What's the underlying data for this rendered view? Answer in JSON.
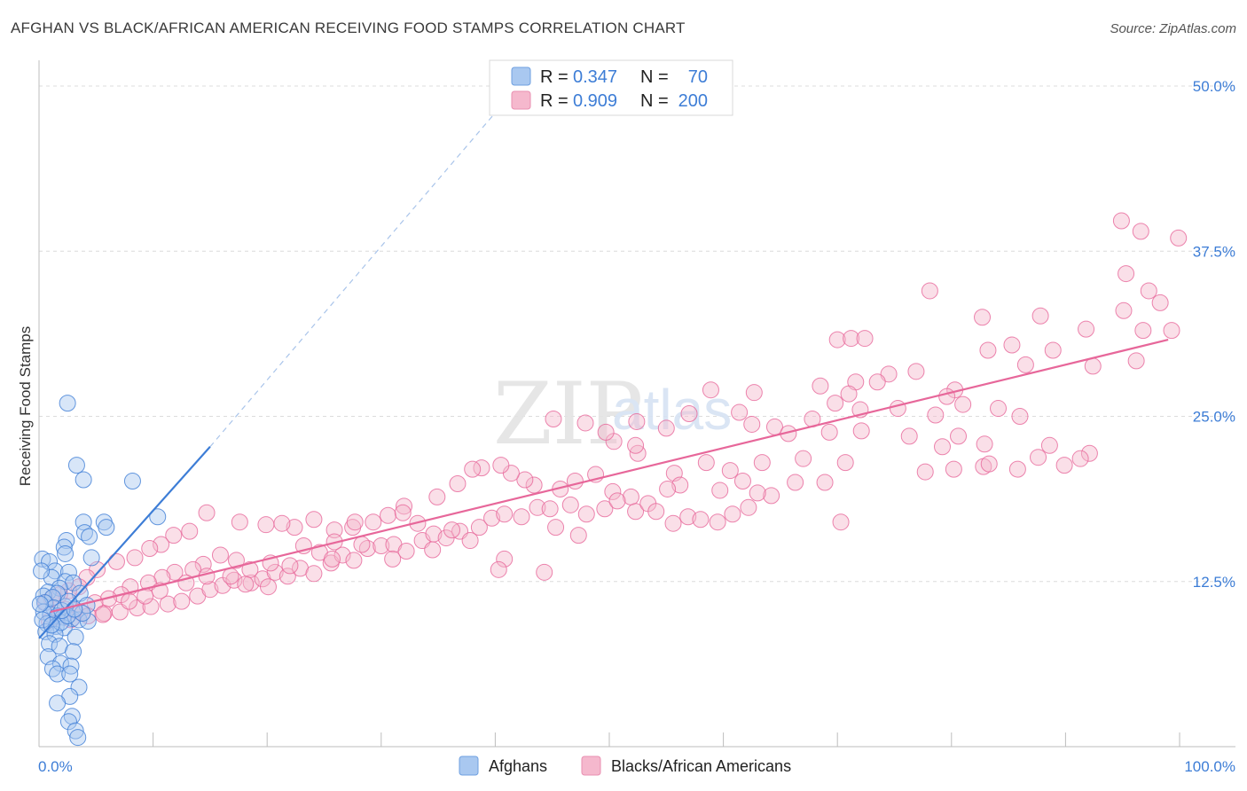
{
  "title": "AFGHAN VS BLACK/AFRICAN AMERICAN RECEIVING FOOD STAMPS CORRELATION CHART",
  "source": "Source: ZipAtlas.com",
  "colors": {
    "blue": "#3d7dd6",
    "blue_fill": "#a9c8f0",
    "pink": "#e7679a",
    "pink_fill": "#f5b8cd"
  },
  "legend": {
    "rows": [
      {
        "r_label": "R =",
        "r_value": "0.347",
        "n_label": "N =",
        "n_value": "70"
      },
      {
        "r_label": "R =",
        "r_value": "0.909",
        "n_label": "N =",
        "n_value": "200"
      }
    ]
  },
  "watermark": {
    "zip": "ZIP",
    "atlas": "atlas"
  },
  "chart_data": {
    "type": "scatter",
    "title": "AFGHAN VS BLACK/AFRICAN AMERICAN RECEIVING FOOD STAMPS CORRELATION CHART",
    "xlabel": "",
    "ylabel": "Receiving Food Stamps",
    "xlim": [
      0,
      100
    ],
    "ylim": [
      0,
      50
    ],
    "x_tick_labels": {
      "left": "0.0%",
      "right": "100.0%"
    },
    "y_ticks": [
      {
        "value": 12.5,
        "label": "12.5%"
      },
      {
        "value": 25.0,
        "label": "25.0%"
      },
      {
        "value": 37.5,
        "label": "37.5%"
      },
      {
        "value": 50.0,
        "label": "50.0%"
      }
    ],
    "series": [
      {
        "name": "Afghans",
        "color": "#3d7dd6",
        "R": 0.347,
        "N": 70,
        "trend": {
          "x0": 0,
          "y0": 8.2,
          "x1": 15,
          "y1": 22.7,
          "dashed_to_x": 42,
          "dashed_to_y": 50
        },
        "points": [
          [
            2.5,
            26
          ],
          [
            3.3,
            21.3
          ],
          [
            3.9,
            20.2
          ],
          [
            8.2,
            20.1
          ],
          [
            10.4,
            17.4
          ],
          [
            3.9,
            17
          ],
          [
            5.7,
            17
          ],
          [
            5.9,
            16.6
          ],
          [
            4.0,
            16.2
          ],
          [
            4.4,
            15.9
          ],
          [
            2.4,
            15.6
          ],
          [
            2.2,
            15.1
          ],
          [
            2.3,
            14.6
          ],
          [
            0.3,
            14.2
          ],
          [
            0.9,
            14.0
          ],
          [
            4.6,
            14.3
          ],
          [
            1.4,
            13.3
          ],
          [
            2.6,
            13.2
          ],
          [
            1.1,
            12.8
          ],
          [
            2.3,
            12.5
          ],
          [
            3.0,
            12.4
          ],
          [
            1.8,
            12.0
          ],
          [
            0.8,
            11.7
          ],
          [
            1.6,
            11.6
          ],
          [
            3.6,
            11.6
          ],
          [
            0.4,
            11.4
          ],
          [
            1.2,
            11.3
          ],
          [
            0.5,
            10.9
          ],
          [
            1.3,
            10.5
          ],
          [
            2.3,
            10.6
          ],
          [
            4.2,
            10.7
          ],
          [
            0.4,
            10.2
          ],
          [
            1.0,
            10.0
          ],
          [
            1.6,
            9.9
          ],
          [
            2.1,
            9.8
          ],
          [
            2.9,
            9.7
          ],
          [
            3.5,
            9.6
          ],
          [
            4.3,
            9.5
          ],
          [
            0.7,
            9.3
          ],
          [
            1.5,
            9.1
          ],
          [
            2.2,
            9.0
          ],
          [
            0.6,
            8.7
          ],
          [
            1.4,
            8.5
          ],
          [
            3.2,
            8.3
          ],
          [
            0.9,
            7.8
          ],
          [
            1.8,
            7.6
          ],
          [
            3.0,
            7.2
          ],
          [
            0.8,
            6.8
          ],
          [
            1.9,
            6.3
          ],
          [
            2.8,
            6.1
          ],
          [
            1.2,
            5.9
          ],
          [
            1.6,
            5.5
          ],
          [
            2.7,
            5.5
          ],
          [
            3.5,
            4.5
          ],
          [
            2.7,
            3.8
          ],
          [
            1.6,
            3.3
          ],
          [
            2.9,
            2.3
          ],
          [
            2.6,
            1.9
          ],
          [
            3.2,
            1.2
          ],
          [
            3.4,
            0.7
          ],
          [
            0.2,
            13.3
          ],
          [
            0.1,
            10.8
          ],
          [
            1.9,
            9.4
          ],
          [
            2.5,
            9.9
          ],
          [
            3.8,
            10.1
          ],
          [
            0.3,
            9.6
          ],
          [
            1.1,
            9.2
          ],
          [
            2.0,
            10.3
          ],
          [
            2.6,
            11.0
          ],
          [
            3.1,
            10.4
          ]
        ]
      },
      {
        "name": "Blacks/African Americans",
        "color": "#e7679a",
        "R": 0.909,
        "N": 200,
        "trend": {
          "x0": 1,
          "y0": 10.2,
          "x1": 99,
          "y1": 30.8
        },
        "points": [
          [
            94.9,
            39.8
          ],
          [
            96.6,
            39.0
          ],
          [
            99.9,
            38.5
          ],
          [
            95.3,
            35.8
          ],
          [
            97.3,
            34.5
          ],
          [
            98.3,
            33.6
          ],
          [
            78.1,
            34.5
          ],
          [
            82.7,
            32.5
          ],
          [
            87.8,
            32.6
          ],
          [
            95.1,
            33.0
          ],
          [
            91.8,
            31.6
          ],
          [
            96.8,
            31.5
          ],
          [
            99.3,
            31.5
          ],
          [
            70.0,
            30.8
          ],
          [
            71.2,
            30.9
          ],
          [
            72.4,
            30.9
          ],
          [
            88.9,
            30.0
          ],
          [
            85.3,
            30.4
          ],
          [
            83.2,
            30.0
          ],
          [
            86.5,
            28.9
          ],
          [
            92.4,
            28.8
          ],
          [
            96.2,
            29.2
          ],
          [
            74.5,
            28.2
          ],
          [
            73.5,
            27.6
          ],
          [
            76.9,
            28.4
          ],
          [
            71.6,
            27.6
          ],
          [
            68.5,
            27.3
          ],
          [
            71.0,
            26.7
          ],
          [
            80.3,
            27.0
          ],
          [
            79.6,
            26.5
          ],
          [
            58.9,
            27.0
          ],
          [
            62.7,
            26.8
          ],
          [
            81.0,
            25.9
          ],
          [
            84.1,
            25.6
          ],
          [
            86.0,
            25.0
          ],
          [
            75.3,
            25.6
          ],
          [
            78.6,
            25.1
          ],
          [
            69.8,
            26.0
          ],
          [
            72.0,
            25.5
          ],
          [
            61.4,
            25.3
          ],
          [
            57.0,
            25.2
          ],
          [
            52.4,
            24.6
          ],
          [
            55.0,
            24.1
          ],
          [
            62.5,
            24.4
          ],
          [
            64.5,
            24.2
          ],
          [
            67.8,
            24.8
          ],
          [
            65.7,
            23.7
          ],
          [
            69.3,
            23.8
          ],
          [
            72.1,
            23.9
          ],
          [
            76.3,
            23.5
          ],
          [
            80.6,
            23.5
          ],
          [
            79.2,
            22.7
          ],
          [
            82.9,
            22.9
          ],
          [
            88.6,
            22.8
          ],
          [
            87.6,
            21.9
          ],
          [
            92.1,
            22.2
          ],
          [
            89.9,
            21.3
          ],
          [
            85.8,
            21.0
          ],
          [
            82.8,
            21.2
          ],
          [
            80.2,
            21.0
          ],
          [
            77.7,
            20.8
          ],
          [
            83.3,
            21.4
          ],
          [
            91.3,
            21.8
          ],
          [
            70.7,
            21.5
          ],
          [
            63.4,
            21.5
          ],
          [
            67.0,
            21.8
          ],
          [
            58.5,
            21.5
          ],
          [
            55.7,
            20.7
          ],
          [
            52.5,
            22.2
          ],
          [
            50.4,
            23.1
          ],
          [
            49.7,
            23.8
          ],
          [
            45.1,
            24.8
          ],
          [
            47.9,
            24.5
          ],
          [
            52.3,
            22.8
          ],
          [
            60.6,
            20.9
          ],
          [
            61.7,
            20.1
          ],
          [
            66.3,
            20.0
          ],
          [
            68.9,
            20.0
          ],
          [
            64.2,
            19.0
          ],
          [
            59.7,
            19.4
          ],
          [
            56.2,
            19.8
          ],
          [
            55.1,
            19.5
          ],
          [
            51.9,
            18.9
          ],
          [
            50.3,
            19.3
          ],
          [
            48.8,
            20.6
          ],
          [
            47.0,
            20.1
          ],
          [
            45.7,
            19.5
          ],
          [
            43.4,
            19.8
          ],
          [
            42.6,
            20.2
          ],
          [
            41.4,
            20.7
          ],
          [
            40.5,
            21.3
          ],
          [
            38.8,
            21.1
          ],
          [
            38.0,
            21.0
          ],
          [
            36.7,
            19.9
          ],
          [
            34.9,
            18.9
          ],
          [
            32.0,
            18.2
          ],
          [
            30.6,
            17.5
          ],
          [
            29.3,
            17.0
          ],
          [
            27.5,
            16.6
          ],
          [
            25.9,
            16.4
          ],
          [
            24.1,
            17.2
          ],
          [
            22.4,
            16.6
          ],
          [
            21.3,
            16.9
          ],
          [
            19.9,
            16.8
          ],
          [
            17.6,
            17.0
          ],
          [
            14.7,
            17.7
          ],
          [
            13.2,
            16.3
          ],
          [
            11.8,
            16.0
          ],
          [
            10.7,
            15.3
          ],
          [
            9.7,
            15.0
          ],
          [
            8.4,
            14.3
          ],
          [
            6.8,
            14.0
          ],
          [
            5.1,
            13.4
          ],
          [
            4.2,
            12.8
          ],
          [
            3.5,
            12.1
          ],
          [
            2.6,
            11.8
          ],
          [
            1.8,
            11.5
          ],
          [
            1.1,
            11.2
          ],
          [
            0.6,
            10.9
          ],
          [
            2.3,
            10.4
          ],
          [
            3.6,
            10.2
          ],
          [
            5.7,
            10.1
          ],
          [
            7.1,
            10.2
          ],
          [
            8.6,
            10.5
          ],
          [
            9.8,
            10.6
          ],
          [
            11.3,
            10.8
          ],
          [
            12.5,
            11.0
          ],
          [
            13.9,
            11.4
          ],
          [
            15.0,
            11.9
          ],
          [
            16.1,
            12.2
          ],
          [
            17.1,
            12.6
          ],
          [
            18.6,
            12.4
          ],
          [
            19.6,
            12.7
          ],
          [
            20.7,
            13.2
          ],
          [
            21.8,
            12.9
          ],
          [
            22.9,
            13.5
          ],
          [
            24.1,
            13.1
          ],
          [
            25.6,
            13.9
          ],
          [
            26.6,
            14.5
          ],
          [
            27.6,
            14.1
          ],
          [
            28.8,
            15.0
          ],
          [
            30.0,
            15.2
          ],
          [
            31.1,
            15.3
          ],
          [
            32.2,
            14.8
          ],
          [
            33.6,
            15.6
          ],
          [
            34.6,
            16.1
          ],
          [
            35.7,
            15.8
          ],
          [
            36.9,
            16.3
          ],
          [
            38.6,
            16.6
          ],
          [
            39.7,
            17.3
          ],
          [
            40.8,
            17.6
          ],
          [
            42.3,
            17.4
          ],
          [
            43.7,
            18.1
          ],
          [
            44.8,
            18.0
          ],
          [
            46.6,
            18.3
          ],
          [
            48.0,
            17.6
          ],
          [
            49.6,
            18.0
          ],
          [
            50.7,
            18.6
          ],
          [
            52.3,
            17.8
          ],
          [
            53.4,
            18.4
          ],
          [
            54.1,
            17.8
          ],
          [
            55.6,
            16.9
          ],
          [
            56.9,
            17.4
          ],
          [
            58.0,
            17.2
          ],
          [
            59.5,
            17.0
          ],
          [
            60.8,
            17.6
          ],
          [
            62.2,
            18.1
          ],
          [
            63.0,
            19.2
          ],
          [
            44.3,
            13.2
          ],
          [
            40.8,
            14.2
          ],
          [
            36.2,
            16.4
          ],
          [
            33.2,
            16.9
          ],
          [
            31.9,
            17.7
          ],
          [
            27.7,
            17.0
          ],
          [
            25.9,
            15.5
          ],
          [
            24.6,
            14.7
          ],
          [
            23.2,
            15.2
          ],
          [
            20.3,
            13.9
          ],
          [
            18.5,
            13.4
          ],
          [
            17.3,
            14.1
          ],
          [
            15.9,
            14.5
          ],
          [
            14.4,
            13.8
          ],
          [
            13.5,
            13.4
          ],
          [
            11.9,
            13.2
          ],
          [
            10.8,
            12.8
          ],
          [
            9.6,
            12.4
          ],
          [
            8.0,
            12.1
          ],
          [
            7.2,
            11.5
          ],
          [
            6.1,
            11.2
          ],
          [
            4.9,
            10.9
          ],
          [
            3.1,
            10.3
          ],
          [
            1.6,
            9.8
          ],
          [
            0.9,
            9.5
          ],
          [
            2.8,
            9.6
          ],
          [
            4.3,
            9.9
          ],
          [
            5.6,
            10.0
          ],
          [
            7.9,
            11.0
          ],
          [
            9.3,
            11.4
          ],
          [
            10.6,
            11.8
          ],
          [
            12.9,
            12.4
          ],
          [
            14.7,
            12.9
          ],
          [
            16.8,
            12.9
          ],
          [
            18.1,
            12.3
          ],
          [
            20.1,
            12.1
          ],
          [
            22.0,
            13.7
          ],
          [
            25.7,
            14.2
          ],
          [
            28.3,
            15.3
          ],
          [
            31.0,
            14.2
          ],
          [
            34.5,
            14.9
          ],
          [
            37.8,
            15.6
          ],
          [
            40.3,
            13.4
          ],
          [
            45.3,
            16.6
          ],
          [
            47.3,
            16.0
          ],
          [
            70.3,
            17.0
          ]
        ]
      }
    ]
  },
  "bottom_legend": [
    {
      "label": "Afghans"
    },
    {
      "label": "Blacks/African Americans"
    }
  ]
}
